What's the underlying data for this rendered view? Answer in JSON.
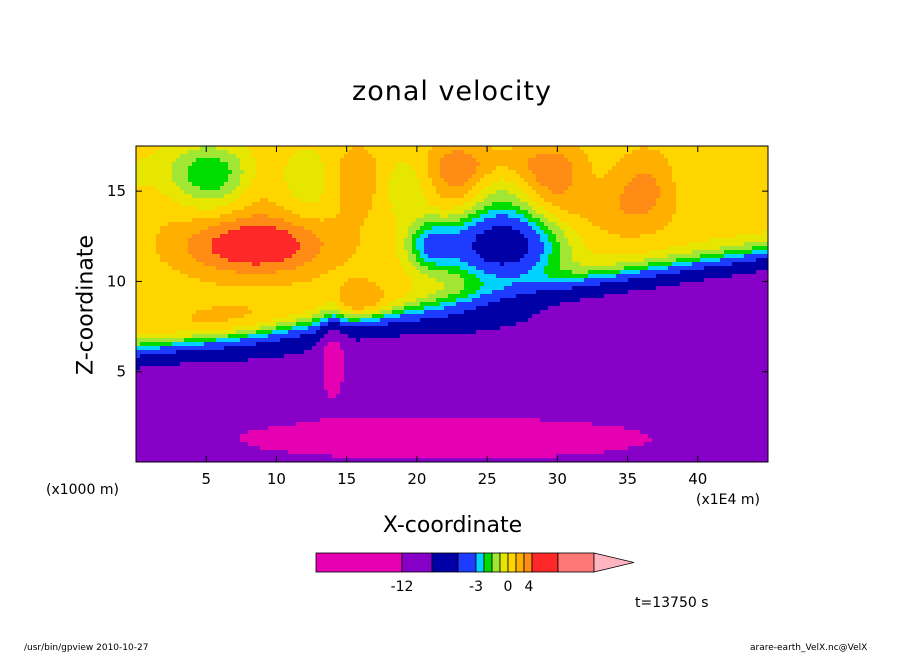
{
  "chart_data": {
    "type": "heatmap",
    "title": "zonal velocity",
    "xlabel": "X-coordinate",
    "ylabel": "Z-coordinate",
    "x_scale_note": "(x1E4 m)",
    "y_scale_note": "(x1000 m)",
    "x_ticks": [
      5,
      10,
      15,
      20,
      25,
      30,
      35,
      40
    ],
    "y_ticks": [
      5,
      10,
      15
    ],
    "xlim": [
      0,
      45
    ],
    "ylim": [
      0,
      17.5
    ],
    "colorbar_labels": [
      "-12",
      "-3",
      "0",
      "4"
    ],
    "color_levels": [
      {
        "min": -18,
        "max": -12,
        "color": "#e600b4"
      },
      {
        "min": -12,
        "max": -9,
        "color": "#8600c8"
      },
      {
        "min": -9,
        "max": -6,
        "color": "#0000a6"
      },
      {
        "min": -6,
        "max": -4,
        "color": "#1e3cff"
      },
      {
        "min": -4,
        "max": -3,
        "color": "#00d2ff"
      },
      {
        "min": -3,
        "max": -2,
        "color": "#00dc00"
      },
      {
        "min": -2,
        "max": -1,
        "color": "#a0e632"
      },
      {
        "min": -1,
        "max": 0,
        "color": "#e6e600"
      },
      {
        "min": 0,
        "max": 1,
        "color": "#ffd500"
      },
      {
        "min": 1,
        "max": 2,
        "color": "#ffaf00"
      },
      {
        "min": 2,
        "max": 3,
        "color": "#ff8c14"
      },
      {
        "min": 3,
        "max": 5,
        "color": "#ff2828"
      },
      {
        "min": 5,
        "max": 8,
        "color": "#ff7878"
      },
      {
        "min": 8,
        "max": 12,
        "color": "#ffb4c0"
      }
    ]
  },
  "annotations": {
    "time": "t=13750 s",
    "footer_left": "/usr/bin/gpview  2010-10-27",
    "footer_right": "arare-earth_VelX.nc@VelX"
  }
}
